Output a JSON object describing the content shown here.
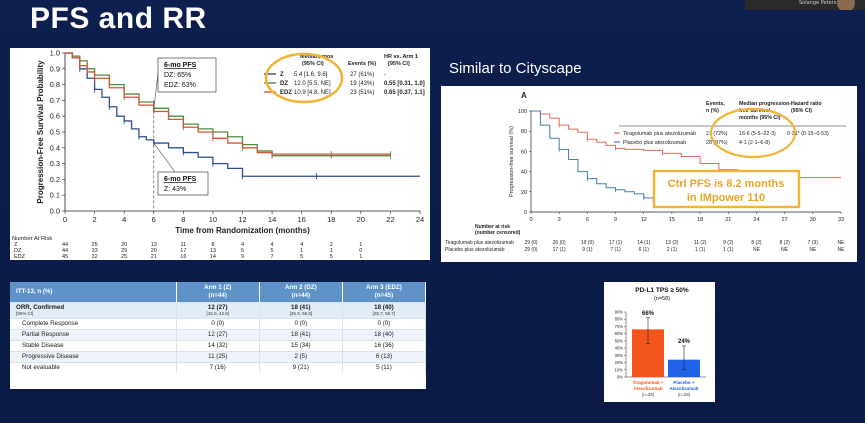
{
  "slide": {
    "title": "PFS and RR",
    "similar_label": "Similar to Cityscape",
    "webcam_name": "Solange Peters"
  },
  "colors": {
    "background": "#0d1f4e",
    "arm_z": "#2f4f8f",
    "arm_dz": "#4f8f3f",
    "arm_edz": "#d9533a",
    "highlight_circle": "#f2b233",
    "tirag_line": "#e06a5e",
    "placebo_line": "#4a78a8",
    "bar_tirag": "#f4551c",
    "bar_placebo": "#1f63e8",
    "table_header": "#5f93c7"
  },
  "chart_data": [
    {
      "id": "km-main",
      "type": "line",
      "ylabel": "Progression-Free Survival Probability",
      "xlabel": "Time from Randomization (months)",
      "xlim": [
        0,
        24
      ],
      "ylim": [
        0,
        1.0
      ],
      "x_ticks": [
        0,
        2,
        4,
        6,
        8,
        10,
        12,
        14,
        16,
        18,
        20,
        22,
        24
      ],
      "y_ticks": [
        "0.0",
        "0.1",
        "0.2",
        "0.3",
        "0.4",
        "0.5",
        "0.6",
        "0.7",
        "0.8",
        "0.9",
        "1.0"
      ],
      "legend_headers": [
        "Median, mos\n(95% CI)",
        "Events (%)",
        "HR vs. Arm 1\n[95% CI]"
      ],
      "legend_rows": [
        {
          "arm": "Z",
          "median": "5.4 [1.6, 9.6]",
          "events": "27 (61%)",
          "hr": "-"
        },
        {
          "arm": "DZ",
          "median": "12.0 [5.5, NE]",
          "events": "19 (43%)",
          "hr": "0.55 [0.31, 1.0]"
        },
        {
          "arm": "EDZ",
          "median": "10.9 [4.8, NE]",
          "events": "23 (51%)",
          "hr": "0.65 [0.37, 1.1]"
        }
      ],
      "annotation_6mo_top": {
        "title": "6-mo PFS",
        "lines": [
          "DZ: 65%",
          "EDZ: 63%"
        ]
      },
      "annotation_6mo_bottom": {
        "title": "6-mo PFS",
        "lines": [
          "Z: 43%"
        ]
      },
      "series": [
        {
          "name": "Z",
          "x": [
            0,
            0.5,
            1.0,
            1.5,
            2.0,
            2.5,
            3.0,
            3.5,
            4.0,
            4.5,
            5.0,
            5.5,
            6.0,
            7.0,
            8.0,
            9.0,
            10.0,
            11.0,
            12.0,
            16.0,
            17.0,
            24.0
          ],
          "y": [
            1.0,
            0.97,
            0.9,
            0.84,
            0.77,
            0.72,
            0.66,
            0.6,
            0.57,
            0.52,
            0.47,
            0.45,
            0.43,
            0.4,
            0.37,
            0.34,
            0.3,
            0.27,
            0.22,
            0.22,
            0.22,
            0.22
          ]
        },
        {
          "name": "DZ",
          "x": [
            0,
            0.5,
            1.0,
            1.5,
            2.0,
            3.0,
            4.0,
            5.0,
            6.0,
            7.0,
            8.0,
            9.0,
            10.0,
            11.0,
            12.0,
            13.0,
            14.0,
            16.0,
            18.0,
            20.0,
            22.0
          ],
          "y": [
            1.0,
            0.98,
            0.95,
            0.9,
            0.86,
            0.8,
            0.74,
            0.69,
            0.65,
            0.6,
            0.55,
            0.52,
            0.5,
            0.47,
            0.42,
            0.38,
            0.35,
            0.35,
            0.35,
            0.35,
            0.35
          ]
        },
        {
          "name": "EDZ",
          "x": [
            0,
            0.5,
            1.0,
            1.5,
            2.0,
            3.0,
            4.0,
            5.0,
            6.0,
            7.0,
            8.0,
            9.0,
            10.0,
            11.0,
            12.0,
            13.0,
            14.0,
            16.0,
            18.0,
            20.0,
            22.0
          ],
          "y": [
            1.0,
            0.97,
            0.92,
            0.88,
            0.84,
            0.78,
            0.72,
            0.67,
            0.63,
            0.58,
            0.53,
            0.5,
            0.46,
            0.43,
            0.4,
            0.37,
            0.36,
            0.36,
            0.36,
            0.36,
            0.36
          ]
        }
      ],
      "risk_label": "Number At Risk",
      "risk_table": [
        {
          "arm": "Z",
          "values": [
            "44",
            "25",
            "20",
            "13",
            "11",
            "8",
            "4",
            "4",
            "4",
            "2",
            "1",
            ""
          ]
        },
        {
          "arm": "DZ",
          "values": [
            "44",
            "33",
            "29",
            "20",
            "17",
            "13",
            "5",
            "5",
            "1",
            "1",
            "0",
            ""
          ]
        },
        {
          "arm": "EDZ",
          "values": [
            "45",
            "32",
            "25",
            "21",
            "16",
            "14",
            "9",
            "7",
            "5",
            "5",
            "1",
            ""
          ]
        }
      ]
    },
    {
      "id": "km-cityscape",
      "type": "line",
      "panel_label": "A",
      "ylabel": "Progression-free survival (%)",
      "xlim": [
        0,
        33
      ],
      "ylim": [
        0,
        100
      ],
      "x_ticks": [
        0,
        3,
        6,
        9,
        12,
        15,
        18,
        21,
        24,
        27,
        30,
        33
      ],
      "y_ticks": [
        0,
        20,
        40,
        60,
        80,
        100
      ],
      "legend_headers": [
        "Events,\nn (%)",
        "Median progression-\nfree survival,\nmonths (95% CI)",
        "Hazard ratio\n(95% CI)"
      ],
      "legend_rows": [
        {
          "arm": "Tiragolumab plus atezolizumab",
          "events": "21 (72%)",
          "median": "16·6 (5·5–22·3)",
          "hr": "0·31* (0·15–0·53)"
        },
        {
          "arm": "Placebo plus atezolizumab",
          "events": "28 (97%)",
          "median": "4·1 (2·1–6·8)",
          "hr": ""
        }
      ],
      "callout": [
        "Ctrl PFS is 8.2 months",
        "in IMpower 110"
      ],
      "series": [
        {
          "name": "Tiragolumab plus atezolizumab",
          "x": [
            0,
            1,
            2,
            3,
            4,
            5,
            6,
            7,
            8,
            9,
            10,
            12,
            14,
            16,
            18,
            20,
            22,
            24,
            27,
            30,
            33
          ],
          "y": [
            100,
            97,
            93,
            86,
            82,
            79,
            72,
            69,
            66,
            63,
            62,
            61,
            58,
            55,
            48,
            42,
            38,
            34,
            34,
            34,
            34
          ]
        },
        {
          "name": "Placebo plus atezolizumab",
          "x": [
            0,
            1,
            2,
            3,
            4,
            5,
            6,
            7,
            8,
            9,
            10,
            11,
            12,
            13,
            14
          ],
          "y": [
            100,
            86,
            73,
            62,
            52,
            40,
            33,
            28,
            24,
            22,
            20,
            18,
            14,
            10,
            7
          ]
        }
      ],
      "risk_label": "Number at risk\n(number censored)",
      "risk_table": [
        {
          "arm": "Tiragolumab plus atezolizumab",
          "values": [
            "29 (0)",
            "26 (0)",
            "19 (0)",
            "17 (1)",
            "14 (1)",
            "13 (2)",
            "11 (2)",
            "9 (2)",
            "8 (2)",
            "8 (2)",
            "7 (3)",
            "NE"
          ]
        },
        {
          "arm": "Placebo plus atezolizumab",
          "values": [
            "29 (0)",
            "17 (1)",
            "9 (1)",
            "7 (1)",
            "6 (1)",
            "2 (1)",
            "1 (1)",
            "1 (1)",
            "NE",
            "NE",
            "NE",
            "NE"
          ]
        }
      ]
    },
    {
      "id": "pdl1-bar",
      "type": "bar",
      "title": "PD-L1 TPS ≥ 50%",
      "subtitle": "(n=58)",
      "categories": [
        "Tiragolumab + Atezolizumab",
        "Placebo + Atezolizumab"
      ],
      "category_n": [
        "(n=29)",
        "(n=29)"
      ],
      "values": [
        66,
        24
      ],
      "value_labels": [
        "66%",
        "24%"
      ],
      "error_low": [
        46,
        10
      ],
      "error_high": [
        82,
        43
      ],
      "ylim": [
        0,
        90
      ],
      "y_ticks": [
        0,
        10,
        20,
        30,
        40,
        50,
        60,
        70,
        80,
        90
      ]
    }
  ],
  "rr_table": {
    "headers": [
      "ITT-13, n (%)",
      "Arm 1 (Z)\n(n=44)",
      "Arm 2 (DZ)\n(n=44)",
      "Arm 3 (EDZ)\n(n=45)"
    ],
    "orr": {
      "label": "ORR, Confirmed",
      "label_sub": "[95% CI]",
      "values": [
        "12 (27)",
        "18 (41)",
        "18 (40)"
      ],
      "cis": [
        "[15.0, 42.8]",
        "[26.3, 56.8]",
        "[25.7, 55.7]"
      ]
    },
    "rows": [
      {
        "label": "Complete Response",
        "values": [
          "0 (0)",
          "0 (0)",
          "0 (0)"
        ]
      },
      {
        "label": "Partial Response",
        "values": [
          "12 (27)",
          "18 (41)",
          "18 (40)"
        ]
      },
      {
        "label": "Stable Disease",
        "values": [
          "14 (32)",
          "15 (34)",
          "16 (36)"
        ]
      },
      {
        "label": "Progressive Disease",
        "values": [
          "11 (25)",
          "2 (5)",
          "6 (13)"
        ]
      },
      {
        "label": "Not evaluable",
        "values": [
          "7 (16)",
          "9 (21)",
          "5 (11)"
        ]
      }
    ]
  }
}
